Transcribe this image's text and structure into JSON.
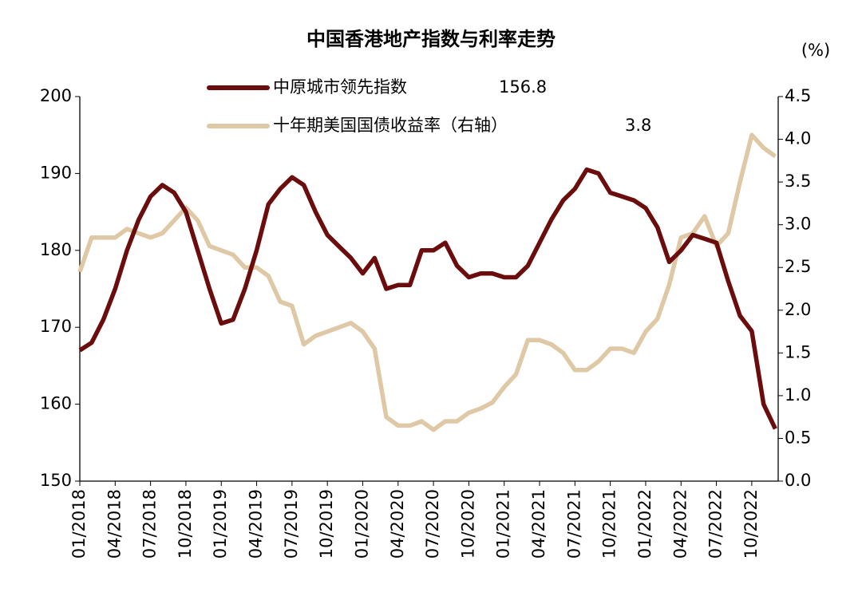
{
  "chart_data": {
    "type": "line",
    "title": "中国香港地产指数与利率走势",
    "y2_label": "(%)",
    "categories": [
      "01/2018",
      null,
      null,
      "04/2018",
      null,
      null,
      "07/2018",
      null,
      null,
      "10/2018",
      null,
      null,
      "01/2019",
      null,
      null,
      "04/2019",
      null,
      null,
      "07/2019",
      null,
      null,
      "10/2019",
      null,
      null,
      "01/2020",
      null,
      null,
      "04/2020",
      null,
      null,
      "07/2020",
      null,
      null,
      "10/2020",
      null,
      null,
      "01/2021",
      null,
      null,
      "04/2021",
      null,
      null,
      "07/2021",
      null,
      null,
      "10/2021",
      null,
      null,
      "01/2022",
      null,
      null,
      "04/2022",
      null,
      null,
      "07/2022",
      null,
      null,
      "10/2022",
      null,
      null
    ],
    "series": [
      {
        "name": "中原城市领先指数",
        "color": "#6b0d0d",
        "axis": "y",
        "values": [
          167,
          168,
          171,
          175,
          180,
          184,
          187,
          188.5,
          187.5,
          185,
          180,
          175,
          170.5,
          171,
          175,
          180,
          186,
          188,
          189.5,
          188.5,
          185,
          182,
          180.5,
          179,
          177,
          179,
          175,
          175.5,
          175.5,
          180,
          180,
          181,
          178,
          176.5,
          177,
          177,
          176.5,
          176.5,
          178,
          181,
          184,
          186.5,
          188,
          190.5,
          190,
          187.5,
          187,
          186.5,
          185.5,
          183,
          178.5,
          180,
          182,
          181.5,
          181,
          176,
          171.5,
          169.5,
          160,
          156.8
        ]
      },
      {
        "name": "十年期美国国债收益率（右轴）",
        "color": "#dfc8a5",
        "axis": "y2",
        "values": [
          2.45,
          2.85,
          2.85,
          2.85,
          2.95,
          2.9,
          2.85,
          2.9,
          3.05,
          3.2,
          3.05,
          2.75,
          2.7,
          2.65,
          2.5,
          2.5,
          2.4,
          2.1,
          2.05,
          1.6,
          1.7,
          1.75,
          1.8,
          1.85,
          1.75,
          1.55,
          0.75,
          0.65,
          0.65,
          0.7,
          0.6,
          0.7,
          0.7,
          0.8,
          0.85,
          0.92,
          1.1,
          1.25,
          1.65,
          1.65,
          1.6,
          1.5,
          1.3,
          1.3,
          1.4,
          1.55,
          1.55,
          1.5,
          1.75,
          1.9,
          2.3,
          2.85,
          2.9,
          3.1,
          2.75,
          2.9,
          3.5,
          4.05,
          3.9,
          3.8
        ]
      }
    ],
    "ylim": [
      150,
      200
    ],
    "yticks": [
      150,
      160,
      170,
      180,
      190,
      200
    ],
    "y2lim": [
      0,
      4.5
    ],
    "y2ticks": [
      {
        "value": 0,
        "label": "0.0"
      },
      0.5,
      {
        "value": 1,
        "label": "1.0"
      },
      1.5,
      {
        "value": 2,
        "label": "2.0"
      },
      2.5,
      {
        "value": 3,
        "label": "3.0"
      },
      3.5,
      {
        "value": 4,
        "label": "4.0"
      },
      4.5
    ],
    "grid": false,
    "legend": "top"
  }
}
